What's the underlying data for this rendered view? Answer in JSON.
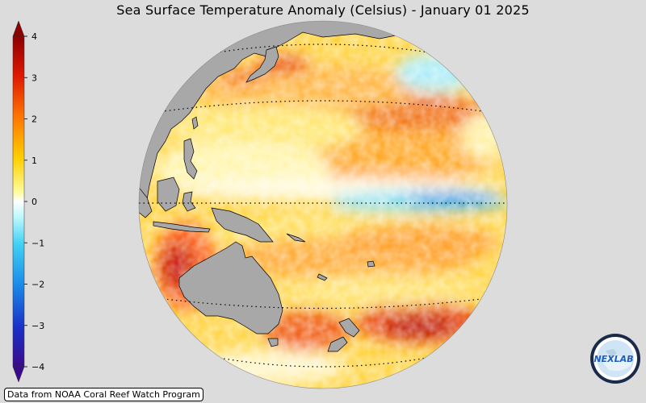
{
  "title": "Sea Surface Temperature Anomaly (Celsius) - January 01 2025",
  "credit": "Data from NOAA Coral Reef Watch Program",
  "logo_text": "NEXLAB",
  "colorbar": {
    "min": -4,
    "max": 4,
    "ticks": [
      "4",
      "3",
      "2",
      "1",
      "0",
      "−1",
      "−2",
      "−3",
      "−4"
    ],
    "colors": [
      "#3a0a8c",
      "#1a4ad8",
      "#2aa8f0",
      "#8ff0f8",
      "#ffffff",
      "#fff03a",
      "#ffa000",
      "#e82000",
      "#8c0000"
    ]
  },
  "map": {
    "projection": "orthographic",
    "land_color": "#a8a8a8",
    "ocean_dominant": "warm anomaly",
    "features": [
      "Asia",
      "Australia",
      "New Zealand",
      "Papua New Guinea",
      "Indonesia",
      "Japan"
    ]
  }
}
